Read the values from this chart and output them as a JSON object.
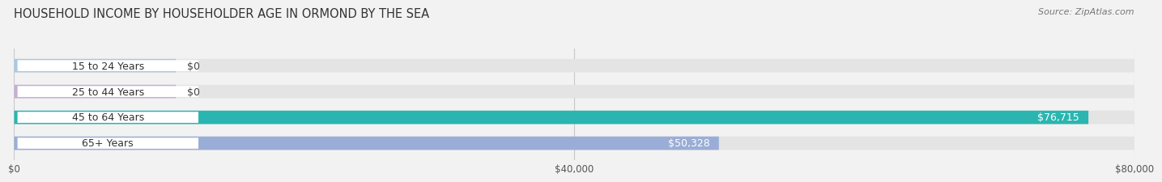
{
  "title": "HOUSEHOLD INCOME BY HOUSEHOLDER AGE IN ORMOND BY THE SEA",
  "source": "Source: ZipAtlas.com",
  "categories": [
    "15 to 24 Years",
    "25 to 44 Years",
    "45 to 64 Years",
    "65+ Years"
  ],
  "values": [
    0,
    0,
    76715,
    50328
  ],
  "bar_colors": [
    "#aac8e0",
    "#c5aed4",
    "#2ab5b0",
    "#9aadd6"
  ],
  "bar_label_colors": [
    "#333333",
    "#333333",
    "#ffffff",
    "#ffffff"
  ],
  "bar_labels": [
    "$0",
    "$0",
    "$76,715",
    "$50,328"
  ],
  "xlim": [
    0,
    80000
  ],
  "xticks": [
    0,
    40000,
    80000
  ],
  "xtick_labels": [
    "$0",
    "$40,000",
    "$80,000"
  ],
  "background_color": "#f2f2f2",
  "bar_bg_color": "#e4e4e4",
  "title_fontsize": 10.5,
  "source_fontsize": 8,
  "label_fontsize": 9,
  "tick_fontsize": 8.5,
  "bar_height": 0.52,
  "fig_width": 14.06,
  "fig_height": 2.33
}
